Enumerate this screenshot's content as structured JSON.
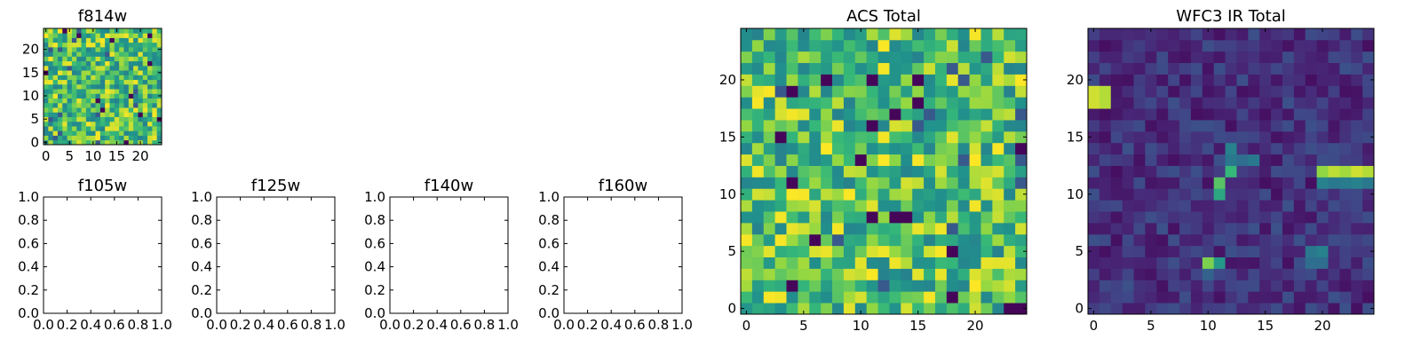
{
  "chart_data": [
    {
      "id": "f814w",
      "type": "heatmap",
      "title": "f814w",
      "rows": 25,
      "cols": 25,
      "colormap": "viridis",
      "seed": 814,
      "xlim": [
        -0.5,
        24.5
      ],
      "ylim": [
        -0.5,
        24.5
      ],
      "xticks": [
        0,
        5,
        10,
        15,
        20
      ],
      "yticks": [
        0,
        5,
        10,
        15,
        20
      ],
      "xlabel": "",
      "ylabel": ""
    },
    {
      "id": "f105w",
      "type": "heatmap",
      "title": "f105w",
      "empty": true,
      "xlim": [
        0,
        1
      ],
      "ylim": [
        0,
        1
      ],
      "xticks": [
        "0.0",
        "0.2",
        "0.4",
        "0.6",
        "0.8",
        "1.0"
      ],
      "yticks": [
        "0.0",
        "0.2",
        "0.4",
        "0.6",
        "0.8",
        "1.0"
      ],
      "xlabel": "",
      "ylabel": ""
    },
    {
      "id": "f125w",
      "type": "heatmap",
      "title": "f125w",
      "empty": true,
      "xlim": [
        0,
        1
      ],
      "ylim": [
        0,
        1
      ],
      "xticks": [
        "0.0",
        "0.2",
        "0.4",
        "0.6",
        "0.8",
        "1.0"
      ],
      "yticks": [
        "0.0",
        "0.2",
        "0.4",
        "0.6",
        "0.8",
        "1.0"
      ],
      "xlabel": "",
      "ylabel": ""
    },
    {
      "id": "f140w",
      "type": "heatmap",
      "title": "f140w",
      "empty": true,
      "xlim": [
        0,
        1
      ],
      "ylim": [
        0,
        1
      ],
      "xticks": [
        "0.0",
        "0.2",
        "0.4",
        "0.6",
        "0.8",
        "1.0"
      ],
      "yticks": [
        "0.0",
        "0.2",
        "0.4",
        "0.6",
        "0.8",
        "1.0"
      ],
      "xlabel": "",
      "ylabel": ""
    },
    {
      "id": "f160w",
      "type": "heatmap",
      "title": "f160w",
      "empty": true,
      "xlim": [
        0,
        1
      ],
      "ylim": [
        0,
        1
      ],
      "xticks": [
        "0.0",
        "0.2",
        "0.4",
        "0.6",
        "0.8",
        "1.0"
      ],
      "yticks": [
        "0.0",
        "0.2",
        "0.4",
        "0.6",
        "0.8",
        "1.0"
      ],
      "xlabel": "",
      "ylabel": ""
    },
    {
      "id": "acs-total",
      "type": "heatmap",
      "title": "ACS Total",
      "rows": 25,
      "cols": 25,
      "colormap": "viridis",
      "seed": 1234,
      "xlim": [
        -0.5,
        24.5
      ],
      "ylim": [
        -0.5,
        24.5
      ],
      "xticks": [
        0,
        5,
        10,
        15,
        20
      ],
      "yticks": [
        0,
        5,
        10,
        15,
        20
      ],
      "xlabel": "",
      "ylabel": ""
    },
    {
      "id": "wfc3-ir-total",
      "type": "heatmap",
      "title": "WFC3 IR Total",
      "rows": 25,
      "cols": 25,
      "colormap": "viridis",
      "seed": 987,
      "xlim": [
        -0.5,
        24.5
      ],
      "ylim": [
        -0.5,
        24.5
      ],
      "xticks": [
        0,
        5,
        10,
        15,
        20
      ],
      "yticks": [
        0,
        5,
        10,
        15,
        20
      ],
      "xlabel": "",
      "ylabel": "",
      "highlights": [
        {
          "x": 0,
          "y": 18,
          "v": 0.95
        },
        {
          "x": 0,
          "y": 19,
          "v": 0.95
        },
        {
          "x": 1,
          "y": 18,
          "v": 0.92
        },
        {
          "x": 1,
          "y": 19,
          "v": 0.92
        },
        {
          "x": 20,
          "y": 12,
          "v": 0.88
        },
        {
          "x": 21,
          "y": 12,
          "v": 0.93
        },
        {
          "x": 22,
          "y": 12,
          "v": 0.9
        },
        {
          "x": 23,
          "y": 12,
          "v": 0.95
        },
        {
          "x": 24,
          "y": 12,
          "v": 0.92
        },
        {
          "x": 20,
          "y": 11,
          "v": 0.55
        },
        {
          "x": 21,
          "y": 11,
          "v": 0.5
        },
        {
          "x": 22,
          "y": 11,
          "v": 0.52
        },
        {
          "x": 23,
          "y": 11,
          "v": 0.55
        },
        {
          "x": 24,
          "y": 11,
          "v": 0.5
        },
        {
          "x": 11,
          "y": 10,
          "v": 0.7
        },
        {
          "x": 11,
          "y": 11,
          "v": 0.8
        },
        {
          "x": 12,
          "y": 12,
          "v": 0.75
        },
        {
          "x": 12,
          "y": 13,
          "v": 0.5
        },
        {
          "x": 12,
          "y": 14,
          "v": 0.55
        },
        {
          "x": 13,
          "y": 13,
          "v": 0.45
        },
        {
          "x": 14,
          "y": 13,
          "v": 0.5
        },
        {
          "x": 10,
          "y": 4,
          "v": 0.85
        },
        {
          "x": 11,
          "y": 4,
          "v": 0.65
        },
        {
          "x": 10,
          "y": 3,
          "v": 0.4
        },
        {
          "x": 19,
          "y": 5,
          "v": 0.5
        },
        {
          "x": 20,
          "y": 5,
          "v": 0.55
        },
        {
          "x": 19,
          "y": 4,
          "v": 0.45
        },
        {
          "x": 20,
          "y": 4,
          "v": 0.45
        }
      ]
    }
  ]
}
